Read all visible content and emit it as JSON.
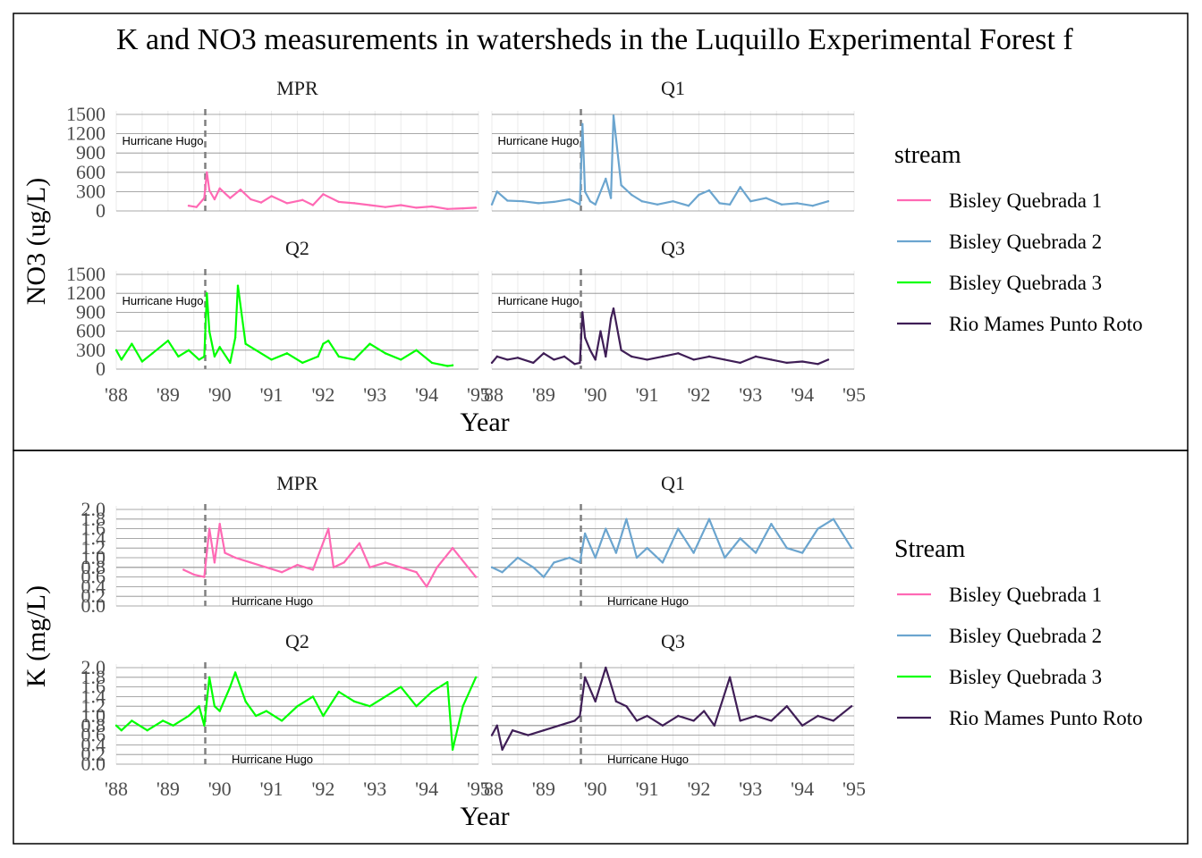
{
  "chart_data": [
    {
      "type": "line",
      "title": "K and NO3 measurements in watersheds in the Luquillo Experimental Forest  f",
      "xlabel": "Year",
      "ylabel": "NO3 (ug/L)",
      "legend_title": "stream",
      "legend_position": "right",
      "grid": true,
      "xlim": [
        1988,
        1995
      ],
      "ylim": [
        0,
        1500
      ],
      "x_ticks": [
        "'88",
        "'89",
        "'90",
        "'91",
        "'92",
        "'93",
        "'94",
        "'95"
      ],
      "y_ticks": [
        "0",
        "300",
        "600",
        "900",
        "1200",
        "1500"
      ],
      "vline": {
        "x": 1989.72,
        "label": "Hurricane Hugo"
      },
      "series": [
        {
          "name": "Bisley Quebrada 1",
          "color": "#ff69b4",
          "panel": "MPR",
          "x": [
            1989.4,
            1989.55,
            1989.7,
            1989.75,
            1989.8,
            1989.9,
            1990.0,
            1990.2,
            1990.4,
            1990.6,
            1990.8,
            1991.0,
            1991.3,
            1991.6,
            1991.8,
            1992.0,
            1992.3,
            1992.6,
            1992.9,
            1993.2,
            1993.5,
            1993.8,
            1994.1,
            1994.4,
            1994.7,
            1994.95
          ],
          "values": [
            80,
            60,
            200,
            600,
            320,
            180,
            350,
            200,
            330,
            180,
            130,
            230,
            120,
            170,
            90,
            260,
            140,
            120,
            90,
            60,
            90,
            50,
            70,
            30,
            40,
            50
          ]
        },
        {
          "name": "Bisley Quebrada 2",
          "color": "#6ba5cf",
          "panel": "Q1",
          "x": [
            1988.0,
            1988.1,
            1988.3,
            1988.6,
            1988.9,
            1989.2,
            1989.5,
            1989.7,
            1989.75,
            1989.8,
            1989.9,
            1990.0,
            1990.2,
            1990.3,
            1990.35,
            1990.5,
            1990.7,
            1990.9,
            1991.2,
            1991.5,
            1991.8,
            1992.0,
            1992.2,
            1992.4,
            1992.6,
            1992.8,
            1993.0,
            1993.3,
            1993.6,
            1993.9,
            1994.2,
            1994.5
          ],
          "values": [
            100,
            300,
            160,
            150,
            120,
            140,
            180,
            100,
            1350,
            300,
            150,
            100,
            500,
            200,
            1480,
            400,
            250,
            150,
            100,
            150,
            80,
            250,
            320,
            120,
            100,
            370,
            150,
            200,
            100,
            120,
            80,
            150
          ]
        },
        {
          "name": "Bisley Quebrada 3",
          "color": "#00ff00",
          "panel": "Q2",
          "x": [
            1988.0,
            1988.1,
            1988.3,
            1988.5,
            1988.7,
            1989.0,
            1989.2,
            1989.4,
            1989.6,
            1989.7,
            1989.75,
            1989.8,
            1989.9,
            1990.0,
            1990.2,
            1990.3,
            1990.35,
            1990.5,
            1990.7,
            1991.0,
            1991.3,
            1991.6,
            1991.9,
            1992.0,
            1992.1,
            1992.3,
            1992.6,
            1992.9,
            1993.2,
            1993.5,
            1993.8,
            1994.1,
            1994.4,
            1994.5
          ],
          "values": [
            300,
            150,
            400,
            120,
            250,
            450,
            200,
            300,
            150,
            200,
            1200,
            600,
            200,
            350,
            100,
            500,
            1320,
            400,
            300,
            150,
            250,
            100,
            200,
            400,
            450,
            200,
            150,
            400,
            250,
            150,
            300,
            100,
            50,
            60
          ]
        },
        {
          "name": "Rio Mames Punto Roto",
          "color": "#3f1e56",
          "panel": "Q3",
          "x": [
            1988.0,
            1988.1,
            1988.3,
            1988.5,
            1988.8,
            1989.0,
            1989.2,
            1989.4,
            1989.6,
            1989.7,
            1989.75,
            1989.8,
            1989.9,
            1990.0,
            1990.1,
            1990.2,
            1990.3,
            1990.35,
            1990.5,
            1990.7,
            1991.0,
            1991.3,
            1991.6,
            1991.9,
            1992.2,
            1992.5,
            1992.8,
            1993.1,
            1993.4,
            1993.7,
            1994.0,
            1994.3,
            1994.5
          ],
          "values": [
            100,
            200,
            150,
            180,
            100,
            250,
            150,
            200,
            80,
            100,
            900,
            500,
            300,
            150,
            600,
            200,
            800,
            960,
            300,
            200,
            150,
            200,
            250,
            150,
            200,
            150,
            100,
            200,
            150,
            100,
            120,
            80,
            150
          ]
        }
      ]
    },
    {
      "type": "line",
      "xlabel": "Year",
      "ylabel": "K (mg/L)",
      "legend_title": "Stream",
      "legend_position": "right",
      "grid": true,
      "xlim": [
        1988,
        1995
      ],
      "ylim": [
        0,
        2.0
      ],
      "x_ticks": [
        "'88",
        "'89",
        "'90",
        "'91",
        "'92",
        "'93",
        "'94",
        "'95"
      ],
      "y_ticks": [
        "0.0",
        "0.2",
        "0.4",
        "0.6",
        "0.8",
        "0.8",
        "1.0",
        "1.2",
        "1.4",
        "1.6",
        "1.8",
        "2.0"
      ],
      "vline": {
        "x": 1989.72,
        "label": "Hurricane Hugo"
      },
      "series": [
        {
          "name": "Bisley Quebrada 1",
          "color": "#ff69b4",
          "panel": "MPR",
          "x": [
            1989.3,
            1989.5,
            1989.7,
            1989.8,
            1989.9,
            1990.0,
            1990.1,
            1990.3,
            1990.6,
            1990.9,
            1991.2,
            1991.5,
            1991.8,
            1992.1,
            1992.2,
            1992.4,
            1992.7,
            1992.9,
            1993.2,
            1993.5,
            1993.8,
            1994.0,
            1994.2,
            1994.5,
            1994.8,
            1994.95
          ],
          "values": [
            0.75,
            0.65,
            0.6,
            1.6,
            0.9,
            1.7,
            1.1,
            1.0,
            0.9,
            0.8,
            0.7,
            0.85,
            0.75,
            1.6,
            0.8,
            0.9,
            1.3,
            0.8,
            0.9,
            0.8,
            0.7,
            0.4,
            0.8,
            1.2,
            0.8,
            0.6
          ]
        },
        {
          "name": "Bisley Quebrada 2",
          "color": "#6ba5cf",
          "panel": "Q1",
          "x": [
            1988.0,
            1988.2,
            1988.5,
            1988.8,
            1989.0,
            1989.2,
            1989.5,
            1989.7,
            1989.8,
            1990.0,
            1990.2,
            1990.4,
            1990.6,
            1990.8,
            1991.0,
            1991.3,
            1991.6,
            1991.9,
            1992.2,
            1992.5,
            1992.8,
            1993.1,
            1993.4,
            1993.7,
            1994.0,
            1994.3,
            1994.6,
            1994.95
          ],
          "values": [
            0.8,
            0.7,
            1.0,
            0.8,
            0.6,
            0.9,
            1.0,
            0.9,
            1.5,
            1.0,
            1.6,
            1.1,
            1.8,
            1.0,
            1.2,
            0.9,
            1.6,
            1.1,
            1.8,
            1.0,
            1.4,
            1.1,
            1.7,
            1.2,
            1.1,
            1.6,
            1.8,
            1.2
          ]
        },
        {
          "name": "Bisley Quebrada 3",
          "color": "#00ff00",
          "panel": "Q2",
          "x": [
            1988.0,
            1988.1,
            1988.3,
            1988.6,
            1988.9,
            1989.1,
            1989.4,
            1989.6,
            1989.7,
            1989.8,
            1989.9,
            1990.0,
            1990.2,
            1990.3,
            1990.5,
            1990.7,
            1990.9,
            1991.2,
            1991.5,
            1991.8,
            1992.0,
            1992.3,
            1992.6,
            1992.9,
            1993.2,
            1993.5,
            1993.8,
            1994.1,
            1994.4,
            1994.5,
            1994.7,
            1994.95
          ],
          "values": [
            0.8,
            0.7,
            0.9,
            0.7,
            0.9,
            0.8,
            1.0,
            1.2,
            0.8,
            1.8,
            1.2,
            1.1,
            1.6,
            1.9,
            1.3,
            1.0,
            1.1,
            0.9,
            1.2,
            1.4,
            1.0,
            1.5,
            1.3,
            1.2,
            1.4,
            1.6,
            1.2,
            1.5,
            1.7,
            0.3,
            1.2,
            1.8
          ]
        },
        {
          "name": "Rio Mames Punto Roto",
          "color": "#3f1e56",
          "panel": "Q3",
          "x": [
            1988.0,
            1988.1,
            1988.2,
            1988.4,
            1988.7,
            1989.0,
            1989.3,
            1989.6,
            1989.7,
            1989.8,
            1990.0,
            1990.2,
            1990.4,
            1990.6,
            1990.8,
            1991.0,
            1991.3,
            1991.6,
            1991.9,
            1992.1,
            1992.3,
            1992.6,
            1992.8,
            1993.1,
            1993.4,
            1993.7,
            1994.0,
            1994.3,
            1994.6,
            1994.95
          ],
          "values": [
            0.6,
            0.8,
            0.3,
            0.7,
            0.6,
            0.7,
            0.8,
            0.9,
            1.0,
            1.8,
            1.3,
            2.0,
            1.3,
            1.2,
            0.9,
            1.0,
            0.8,
            1.0,
            0.9,
            1.1,
            0.8,
            1.8,
            0.9,
            1.0,
            0.9,
            1.2,
            0.8,
            1.0,
            0.9,
            1.2
          ]
        }
      ]
    }
  ]
}
